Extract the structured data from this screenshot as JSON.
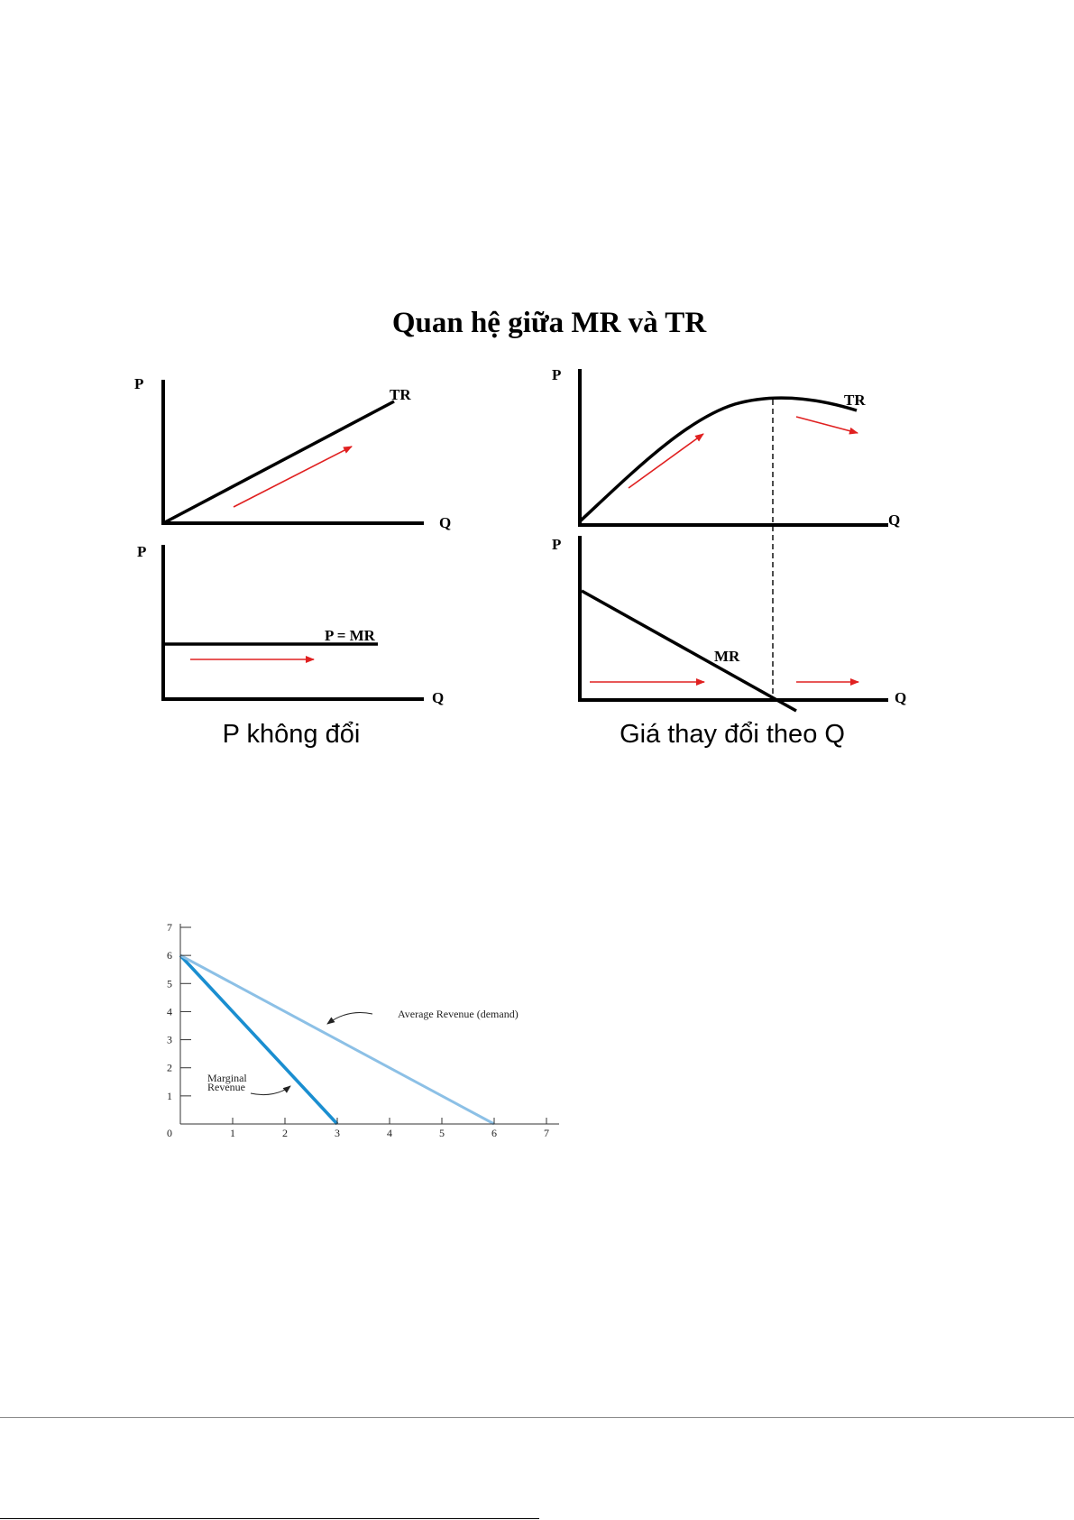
{
  "figure1": {
    "title": "Quan hệ giữa MR và TR",
    "left": {
      "top_p": "P",
      "top_q": "Q",
      "top_curve": "TR",
      "bottom_p": "P",
      "bottom_q": "Q",
      "bottom_curve": "P = MR",
      "caption": "P không đổi"
    },
    "right": {
      "top_p": "P",
      "top_q": "Q",
      "top_curve": "TR",
      "bottom_p": "P",
      "bottom_q": "Q",
      "bottom_curve": "MR",
      "caption": "Giá thay đổi theo Q"
    },
    "colors": {
      "axis": "#000000",
      "arrow": "#e02020"
    }
  },
  "chart_data": {
    "type": "line",
    "x_ticks": [
      "0",
      "1",
      "2",
      "3",
      "4",
      "5",
      "6",
      "7"
    ],
    "y_ticks": [
      "1",
      "2",
      "3",
      "4",
      "5",
      "6",
      "7"
    ],
    "xlim": [
      0,
      7
    ],
    "ylim": [
      0,
      7
    ],
    "series": [
      {
        "name": "Average Revenue (demand)",
        "x": [
          0,
          6
        ],
        "y": [
          6,
          0
        ],
        "color": "#8cc0e6"
      },
      {
        "name": "Marginal Revenue",
        "x": [
          0,
          3
        ],
        "y": [
          6,
          0
        ],
        "color": "#1a8ed0"
      }
    ],
    "annotations": [
      "Average Revenue (demand)",
      "Marginal",
      "Revenue"
    ]
  }
}
